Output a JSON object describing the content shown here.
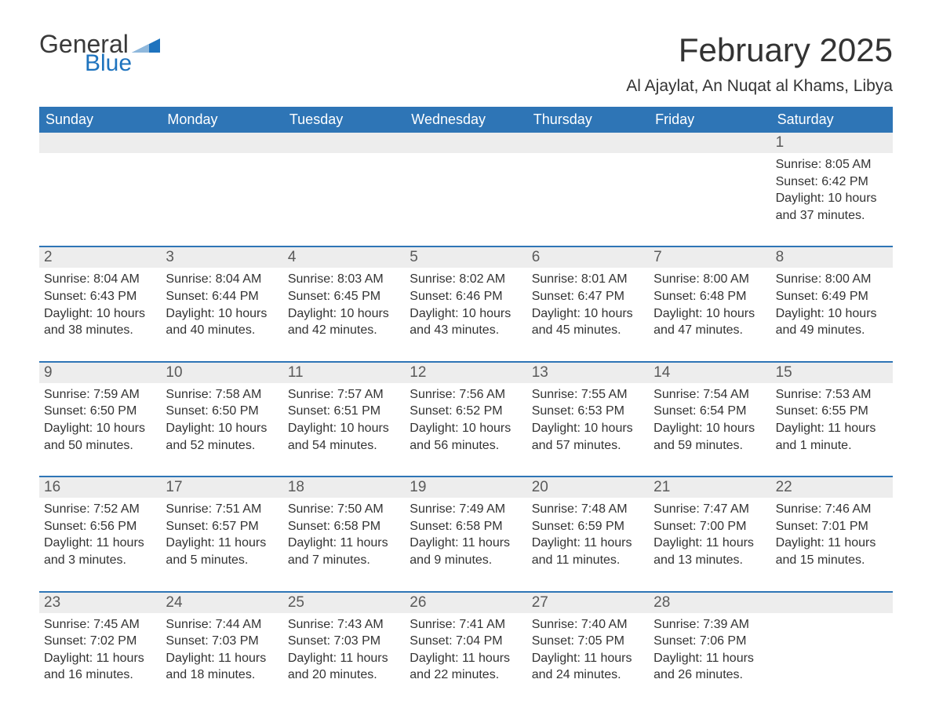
{
  "brand": {
    "word1": "General",
    "word2": "Blue",
    "accent_color": "#1e73be"
  },
  "title": "February 2025",
  "location": "Al Ajaylat, An Nuqat al Khams, Libya",
  "colors": {
    "header_bg": "#2e75b6",
    "header_text": "#ffffff",
    "daynum_bg": "#ededed",
    "row_divider": "#2e75b6",
    "body_text": "#333333",
    "background": "#ffffff"
  },
  "font": {
    "family": "Segoe UI",
    "title_size_pt": 32,
    "weekday_size_pt": 14,
    "body_size_pt": 12
  },
  "weekdays": [
    "Sunday",
    "Monday",
    "Tuesday",
    "Wednesday",
    "Thursday",
    "Friday",
    "Saturday"
  ],
  "weeks": [
    [
      null,
      null,
      null,
      null,
      null,
      null,
      {
        "n": "1",
        "sunrise": "8:05 AM",
        "sunset": "6:42 PM",
        "daylight": "10 hours and 37 minutes."
      }
    ],
    [
      {
        "n": "2",
        "sunrise": "8:04 AM",
        "sunset": "6:43 PM",
        "daylight": "10 hours and 38 minutes."
      },
      {
        "n": "3",
        "sunrise": "8:04 AM",
        "sunset": "6:44 PM",
        "daylight": "10 hours and 40 minutes."
      },
      {
        "n": "4",
        "sunrise": "8:03 AM",
        "sunset": "6:45 PM",
        "daylight": "10 hours and 42 minutes."
      },
      {
        "n": "5",
        "sunrise": "8:02 AM",
        "sunset": "6:46 PM",
        "daylight": "10 hours and 43 minutes."
      },
      {
        "n": "6",
        "sunrise": "8:01 AM",
        "sunset": "6:47 PM",
        "daylight": "10 hours and 45 minutes."
      },
      {
        "n": "7",
        "sunrise": "8:00 AM",
        "sunset": "6:48 PM",
        "daylight": "10 hours and 47 minutes."
      },
      {
        "n": "8",
        "sunrise": "8:00 AM",
        "sunset": "6:49 PM",
        "daylight": "10 hours and 49 minutes."
      }
    ],
    [
      {
        "n": "9",
        "sunrise": "7:59 AM",
        "sunset": "6:50 PM",
        "daylight": "10 hours and 50 minutes."
      },
      {
        "n": "10",
        "sunrise": "7:58 AM",
        "sunset": "6:50 PM",
        "daylight": "10 hours and 52 minutes."
      },
      {
        "n": "11",
        "sunrise": "7:57 AM",
        "sunset": "6:51 PM",
        "daylight": "10 hours and 54 minutes."
      },
      {
        "n": "12",
        "sunrise": "7:56 AM",
        "sunset": "6:52 PM",
        "daylight": "10 hours and 56 minutes."
      },
      {
        "n": "13",
        "sunrise": "7:55 AM",
        "sunset": "6:53 PM",
        "daylight": "10 hours and 57 minutes."
      },
      {
        "n": "14",
        "sunrise": "7:54 AM",
        "sunset": "6:54 PM",
        "daylight": "10 hours and 59 minutes."
      },
      {
        "n": "15",
        "sunrise": "7:53 AM",
        "sunset": "6:55 PM",
        "daylight": "11 hours and 1 minute."
      }
    ],
    [
      {
        "n": "16",
        "sunrise": "7:52 AM",
        "sunset": "6:56 PM",
        "daylight": "11 hours and 3 minutes."
      },
      {
        "n": "17",
        "sunrise": "7:51 AM",
        "sunset": "6:57 PM",
        "daylight": "11 hours and 5 minutes."
      },
      {
        "n": "18",
        "sunrise": "7:50 AM",
        "sunset": "6:58 PM",
        "daylight": "11 hours and 7 minutes."
      },
      {
        "n": "19",
        "sunrise": "7:49 AM",
        "sunset": "6:58 PM",
        "daylight": "11 hours and 9 minutes."
      },
      {
        "n": "20",
        "sunrise": "7:48 AM",
        "sunset": "6:59 PM",
        "daylight": "11 hours and 11 minutes."
      },
      {
        "n": "21",
        "sunrise": "7:47 AM",
        "sunset": "7:00 PM",
        "daylight": "11 hours and 13 minutes."
      },
      {
        "n": "22",
        "sunrise": "7:46 AM",
        "sunset": "7:01 PM",
        "daylight": "11 hours and 15 minutes."
      }
    ],
    [
      {
        "n": "23",
        "sunrise": "7:45 AM",
        "sunset": "7:02 PM",
        "daylight": "11 hours and 16 minutes."
      },
      {
        "n": "24",
        "sunrise": "7:44 AM",
        "sunset": "7:03 PM",
        "daylight": "11 hours and 18 minutes."
      },
      {
        "n": "25",
        "sunrise": "7:43 AM",
        "sunset": "7:03 PM",
        "daylight": "11 hours and 20 minutes."
      },
      {
        "n": "26",
        "sunrise": "7:41 AM",
        "sunset": "7:04 PM",
        "daylight": "11 hours and 22 minutes."
      },
      {
        "n": "27",
        "sunrise": "7:40 AM",
        "sunset": "7:05 PM",
        "daylight": "11 hours and 24 minutes."
      },
      {
        "n": "28",
        "sunrise": "7:39 AM",
        "sunset": "7:06 PM",
        "daylight": "11 hours and 26 minutes."
      },
      null
    ]
  ],
  "labels": {
    "sunrise": "Sunrise:",
    "sunset": "Sunset:",
    "daylight": "Daylight:"
  }
}
